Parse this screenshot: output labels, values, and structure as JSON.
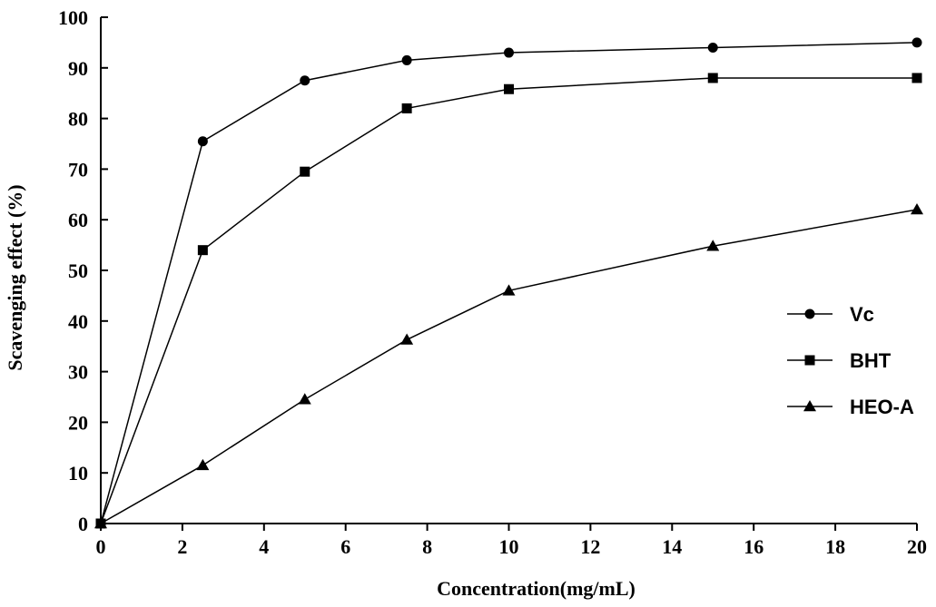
{
  "chart_data": {
    "type": "line",
    "xlabel": "Concentration(mg/mL)",
    "ylabel": "Scavenging effect (%)",
    "xlim": [
      0,
      20
    ],
    "ylim": [
      0,
      100
    ],
    "xticks": [
      0,
      2,
      4,
      6,
      8,
      10,
      12,
      14,
      16,
      18,
      20
    ],
    "yticks": [
      0,
      10,
      20,
      30,
      40,
      50,
      60,
      70,
      80,
      90,
      100
    ],
    "grid": false,
    "legend": "right",
    "x": [
      0,
      2.5,
      5,
      7.5,
      10,
      15,
      20
    ],
    "series": [
      {
        "name": "Vc",
        "marker": "circle",
        "values": [
          0,
          75.5,
          87.5,
          91.5,
          93,
          94,
          95
        ]
      },
      {
        "name": "BHT",
        "marker": "square",
        "values": [
          0,
          54,
          69.5,
          82,
          85.8,
          88,
          88
        ]
      },
      {
        "name": "HEO-A",
        "marker": "triangle",
        "values": [
          0,
          11.5,
          24.5,
          36.3,
          46,
          54.8,
          62
        ]
      }
    ]
  }
}
